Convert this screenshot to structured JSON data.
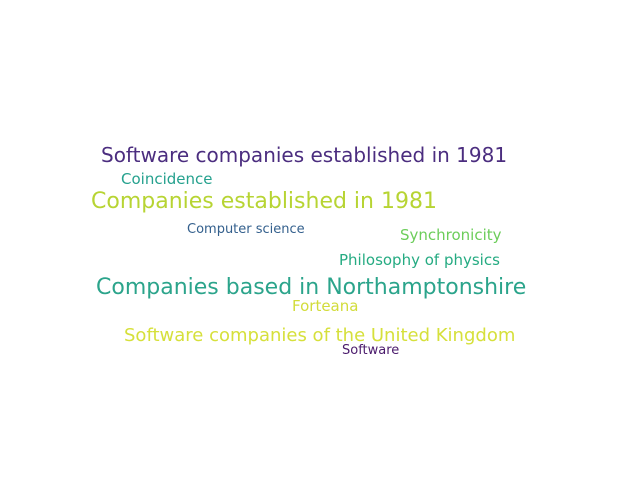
{
  "words": [
    {
      "text": "Software companies established in 1981",
      "color": "#4b2d7f"
    },
    {
      "text": "Coincidence",
      "color": "#25a18e"
    },
    {
      "text": "Companies established in 1981",
      "color": "#b7d433"
    },
    {
      "text": "Computer science",
      "color": "#34608d"
    },
    {
      "text": "Synchronicity",
      "color": "#6ccd5a"
    },
    {
      "text": "Philosophy of physics",
      "color": "#25ab82"
    },
    {
      "text": "Companies based in Northamptonshire",
      "color": "#2ba48b"
    },
    {
      "text": "Forteana",
      "color": "#d2dc3a"
    },
    {
      "text": "Software companies of the United Kingdom",
      "color": "#d6e03b"
    },
    {
      "text": "Software",
      "color": "#4a1a6c"
    }
  ]
}
